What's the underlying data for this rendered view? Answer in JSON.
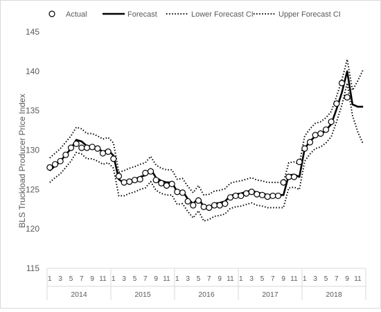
{
  "chart_data": {
    "type": "line",
    "title": "",
    "xlabel": "",
    "ylabel": "BLS Truckload Producer Price Index",
    "ylim": [
      115,
      145
    ],
    "yticks": [
      115,
      120,
      125,
      130,
      135,
      140,
      145
    ],
    "grid": false,
    "legend_position": "top",
    "month_tick_labels": [
      "1",
      "3",
      "5",
      "7",
      "9",
      "11"
    ],
    "years": [
      "2014",
      "2015",
      "2016",
      "2017",
      "2018"
    ],
    "months_per_year": 12,
    "series": [
      {
        "name": "Actual",
        "style": "open-circle",
        "color": "#000000",
        "values": [
          127.8,
          128.2,
          128.6,
          129.4,
          130.3,
          130.8,
          130.3,
          130.3,
          130.4,
          130.2,
          129.6,
          129.8,
          128.9,
          126.7,
          125.9,
          126.0,
          126.2,
          126.3,
          127.1,
          127.3,
          126.2,
          125.8,
          125.5,
          125.7,
          124.7,
          124.6,
          123.5,
          123.0,
          123.6,
          122.8,
          122.7,
          123.0,
          123.0,
          123.2,
          124.0,
          124.2,
          124.2,
          124.5,
          124.7,
          124.4,
          124.3,
          124.1,
          124.2,
          124.2,
          125.9,
          126.6,
          126.6,
          128.5,
          130.2,
          131.0,
          131.9,
          132.1,
          132.6,
          133.6,
          135.9,
          138.5,
          136.7,
          null,
          null,
          null
        ]
      },
      {
        "name": "Forecast",
        "style": "solid-thick",
        "color": "#000000",
        "values": [
          127.4,
          128.0,
          128.6,
          129.4,
          130.2,
          131.3,
          131.1,
          130.5,
          130.5,
          130.2,
          129.8,
          130.0,
          129.3,
          126.3,
          125.8,
          126.1,
          126.3,
          126.6,
          126.8,
          127.6,
          126.5,
          126.1,
          125.9,
          125.9,
          124.7,
          124.8,
          123.8,
          123.2,
          123.9,
          122.8,
          122.7,
          123.2,
          123.3,
          123.5,
          124.2,
          124.4,
          124.5,
          124.7,
          124.9,
          124.6,
          124.5,
          124.3,
          124.3,
          124.3,
          124.3,
          126.8,
          126.9,
          126.6,
          130.2,
          131.1,
          131.8,
          132.0,
          132.5,
          133.3,
          135.2,
          137.3,
          140.0,
          135.8,
          135.5,
          135.5
        ]
      },
      {
        "name": "Lower Forecast CI",
        "style": "dotted",
        "color": "#000000",
        "values": [
          125.9,
          126.5,
          127.0,
          127.8,
          128.6,
          129.7,
          129.5,
          128.9,
          128.9,
          128.6,
          128.2,
          128.4,
          127.7,
          124.2,
          124.2,
          124.5,
          124.7,
          125.0,
          125.2,
          126.0,
          124.9,
          124.5,
          124.3,
          124.3,
          123.1,
          123.2,
          122.2,
          121.4,
          122.3,
          121.0,
          121.2,
          121.6,
          121.7,
          121.9,
          122.6,
          122.8,
          122.9,
          123.1,
          123.3,
          123.0,
          122.9,
          122.7,
          122.7,
          122.7,
          122.7,
          125.2,
          125.3,
          125.0,
          128.6,
          129.5,
          130.2,
          130.4,
          130.9,
          131.7,
          133.6,
          135.7,
          138.5,
          134.4,
          132.3,
          130.8
        ]
      },
      {
        "name": "Upper Forecast CI",
        "style": "dotted",
        "color": "#000000",
        "values": [
          129.0,
          129.6,
          130.2,
          131.0,
          131.8,
          132.9,
          132.7,
          132.1,
          132.1,
          131.8,
          131.4,
          131.6,
          130.9,
          127.2,
          127.4,
          127.7,
          127.9,
          128.2,
          128.4,
          129.2,
          128.1,
          127.7,
          127.5,
          127.5,
          126.3,
          126.4,
          125.4,
          124.6,
          125.5,
          124.3,
          124.4,
          124.8,
          124.9,
          125.1,
          125.8,
          126.0,
          126.1,
          126.3,
          126.5,
          126.2,
          126.1,
          125.9,
          125.9,
          125.9,
          125.9,
          128.4,
          128.5,
          128.2,
          131.8,
          132.7,
          133.4,
          133.6,
          134.1,
          134.9,
          136.8,
          138.9,
          141.5,
          137.6,
          138.8,
          140.2
        ]
      }
    ]
  }
}
